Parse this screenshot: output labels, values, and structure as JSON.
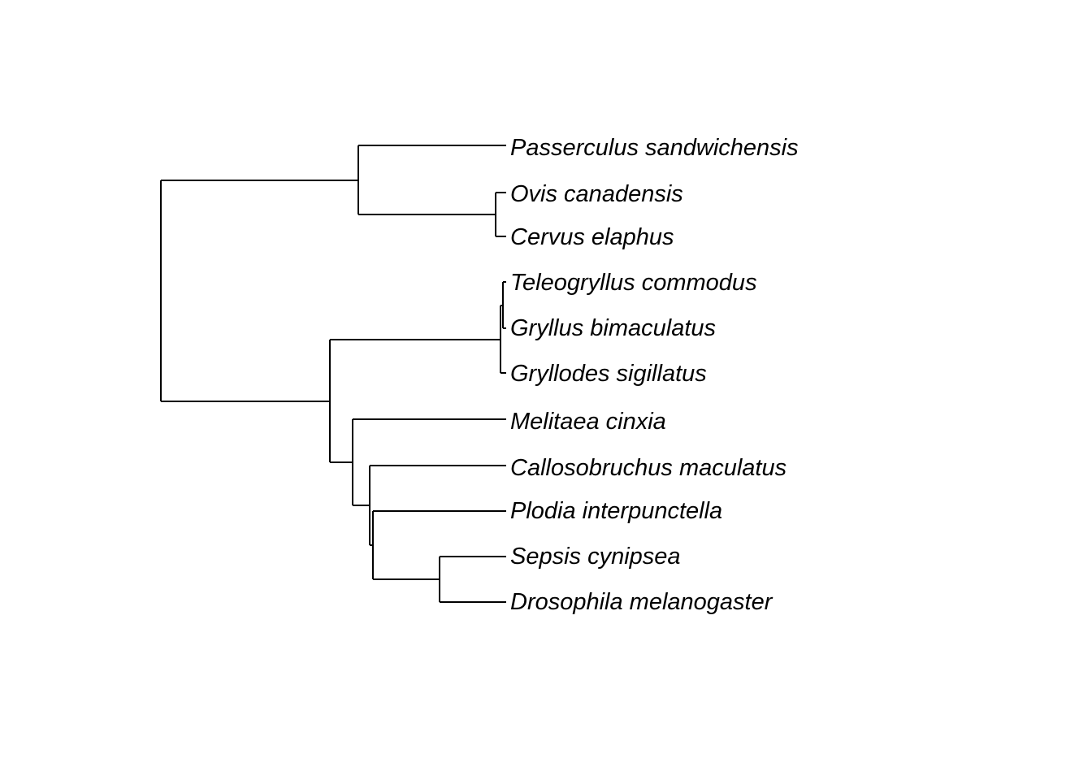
{
  "diagram": {
    "type": "phylogenetic-tree",
    "taxa": [
      "Passerculus sandwichensis",
      "Ovis canadensis",
      "Cervus elaphus",
      "Teleogryllus commodus",
      "Gryllus bimaculatus",
      "Gryllodes sigillatus",
      "Melitaea cinxia",
      "Callosobruchus maculatus",
      "Plodia interpunctella",
      "Sepsis cynipsea",
      "Drosophila melanogaster"
    ],
    "topology": "((Passerculus sandwichensis,(Ovis canadensis,Cervus elaphus)),((Teleogryllus commodus,Gryllus bimaculatus,Gryllodes sigillatus),(Melitaea cinxia,(Callosobruchus maculatus,(Plodia interpunctella,(Sepsis cynipsea,Drosophila melanogaster))))))"
  }
}
